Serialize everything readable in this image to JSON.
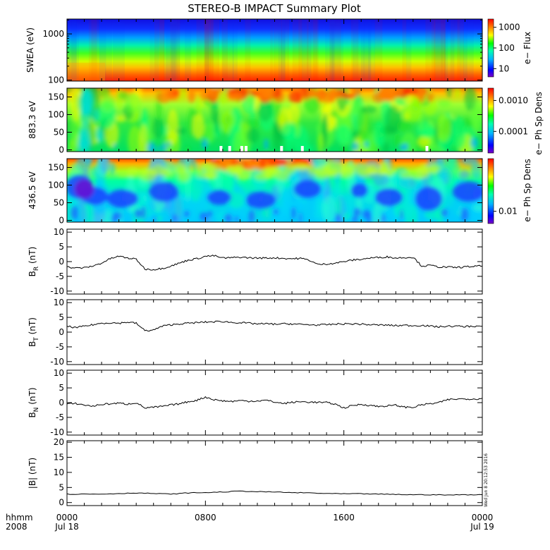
{
  "title": "STEREO-B IMPACT Summary Plot",
  "stamp": "Wed Jun  8 20:12:53 2016",
  "x_axis": {
    "row1": [
      "hhmm",
      "0000",
      "0800",
      "1600",
      "0000"
    ],
    "row2": [
      "2008",
      "Jul 18",
      "Jul 19"
    ]
  },
  "colors": {
    "line": "#000000",
    "background": "#ffffff"
  },
  "chart_data": [
    {
      "type": "heatmap",
      "name": "swea",
      "ylabel": "SWEA (eV)",
      "yscale": "log",
      "ylim": [
        95,
        2100
      ],
      "yticks": [
        "100",
        "1000"
      ],
      "colorbar": {
        "label": "e− Flux",
        "scale": "log",
        "range": [
          4,
          2500
        ],
        "ticks": [
          "10",
          "100",
          "1000"
        ]
      },
      "description_rows_low_to_high": "flux decreases with energy: red near 100 eV, green near 400 eV, blue above 1000 eV"
    },
    {
      "type": "heatmap",
      "name": "pad_883",
      "ylabel": "883.3 eV",
      "ylim": [
        -5,
        175
      ],
      "yticks": [
        "0",
        "50",
        "100",
        "150"
      ],
      "colorbar": {
        "label": "e− Ph Sp Dens",
        "scale": "log",
        "range": [
          2e-05,
          0.0025
        ],
        "ticks": [
          "0.0001",
          "0.0010"
        ]
      },
      "gaps_hours": [
        8.9,
        9.4,
        10.1,
        10.35,
        12.4,
        13.6,
        20.8
      ]
    },
    {
      "type": "heatmap",
      "name": "pad_436",
      "ylabel": "436.5 eV",
      "ylim": [
        -5,
        175
      ],
      "yticks": [
        "0",
        "50",
        "100",
        "150"
      ],
      "colorbar": {
        "label": "e− Ph Sp Dens",
        "scale": "log",
        "range": [
          0.006,
          0.09
        ],
        "ticks": [
          "0.01"
        ]
      }
    },
    {
      "type": "line",
      "name": "br",
      "ylabel": "B_R (nT)",
      "ylabel_main": "B",
      "ylabel_sub": "R",
      "ylabel_unit": "(nT)",
      "ylim": [
        -11,
        11
      ],
      "yticks": [
        "-10",
        "-5",
        "0",
        "5",
        "10"
      ],
      "x": [
        0,
        0.5,
        1,
        1.5,
        2,
        2.5,
        3,
        3.5,
        4,
        4.5,
        5,
        5.5,
        6,
        6.5,
        7,
        7.5,
        8,
        8.5,
        9,
        9.5,
        10,
        10.5,
        11,
        11.5,
        12,
        12.5,
        13,
        13.5,
        14,
        14.5,
        15,
        15.5,
        16,
        16.5,
        17,
        17.5,
        18,
        18.5,
        19,
        19.5,
        20,
        20.5,
        21,
        21.5,
        22,
        22.5,
        23,
        23.5,
        24
      ],
      "y": [
        -1.8,
        -2.2,
        -2.1,
        -1.5,
        -0.5,
        1.0,
        1.8,
        1.2,
        0.8,
        -2.5,
        -2.7,
        -2.3,
        -1.5,
        -0.5,
        0.5,
        1.0,
        1.8,
        2.0,
        1.2,
        1.3,
        1.5,
        1.3,
        1.2,
        1.2,
        1.3,
        1.1,
        1.0,
        1.1,
        0.5,
        -1.0,
        -0.8,
        -0.5,
        0.0,
        0.5,
        0.8,
        1.2,
        1.4,
        1.6,
        1.2,
        1.4,
        1.5,
        -1.5,
        -1.3,
        -1.8,
        -1.9,
        -2.0,
        -1.8,
        -1.6,
        -1.5
      ]
    },
    {
      "type": "line",
      "name": "bt",
      "ylabel": "B_T (nT)",
      "ylabel_main": "B",
      "ylabel_sub": "T",
      "ylabel_unit": "(nT)",
      "ylim": [
        -11,
        11
      ],
      "yticks": [
        "-10",
        "-5",
        "0",
        "5",
        "10"
      ],
      "x": [
        0,
        0.5,
        1,
        1.5,
        2,
        2.5,
        3,
        3.5,
        4,
        4.5,
        5,
        5.5,
        6,
        6.5,
        7,
        7.5,
        8,
        8.5,
        9,
        9.5,
        10,
        10.5,
        11,
        11.5,
        12,
        12.5,
        13,
        13.5,
        14,
        14.5,
        15,
        15.5,
        16,
        16.5,
        17,
        17.5,
        18,
        18.5,
        19,
        19.5,
        20,
        20.5,
        21,
        21.5,
        22,
        22.5,
        23,
        23.5,
        24
      ],
      "y": [
        2.0,
        1.5,
        2.0,
        2.5,
        3.0,
        3.2,
        3.0,
        3.4,
        3.0,
        0.5,
        0.7,
        2.0,
        2.5,
        2.8,
        3.0,
        3.2,
        3.4,
        3.5,
        3.6,
        3.3,
        3.2,
        3.0,
        2.8,
        2.8,
        2.7,
        2.8,
        2.8,
        2.6,
        2.5,
        2.4,
        2.5,
        2.7,
        2.8,
        2.8,
        2.7,
        2.5,
        2.4,
        2.4,
        2.2,
        2.3,
        2.2,
        2.3,
        2.0,
        1.8,
        2.0,
        2.0,
        1.9,
        2.0,
        2.0
      ]
    },
    {
      "type": "line",
      "name": "bn",
      "ylabel": "B_N (nT)",
      "ylabel_main": "B",
      "ylabel_sub": "N",
      "ylabel_unit": "(nT)",
      "ylim": [
        -11,
        11
      ],
      "yticks": [
        "-10",
        "-5",
        "0",
        "5",
        "10"
      ],
      "x": [
        0,
        0.5,
        1,
        1.5,
        2,
        2.5,
        3,
        3.5,
        4,
        4.5,
        5,
        5.5,
        6,
        6.5,
        7,
        7.5,
        8,
        8.5,
        9,
        9.5,
        10,
        10.5,
        11,
        11.5,
        12,
        12.5,
        13,
        13.5,
        14,
        14.5,
        15,
        15.5,
        16,
        16.5,
        17,
        17.5,
        18,
        18.5,
        19,
        19.5,
        20,
        20.5,
        21,
        21.5,
        22,
        22.5,
        23,
        23.5,
        24
      ],
      "y": [
        -0.5,
        -0.3,
        -0.8,
        -1.2,
        -0.6,
        -0.4,
        -0.2,
        -0.5,
        0.0,
        -1.8,
        -1.6,
        -1.3,
        -0.8,
        -0.4,
        0.3,
        0.8,
        1.9,
        1.0,
        0.6,
        0.4,
        0.7,
        0.5,
        0.6,
        0.8,
        0.2,
        -0.3,
        0.1,
        0.3,
        0.2,
        0.1,
        0.0,
        -0.5,
        -1.8,
        -1.0,
        -0.6,
        -0.9,
        -1.3,
        -1.1,
        -0.9,
        -1.5,
        -1.6,
        -0.7,
        -0.4,
        0.0,
        1.0,
        1.2,
        1.3,
        1.2,
        1.5
      ]
    },
    {
      "type": "line",
      "name": "bmag",
      "ylabel": "|B| (nT)",
      "ylim": [
        -1,
        20.5
      ],
      "yticks": [
        "0",
        "5",
        "10",
        "15",
        "20"
      ],
      "x": [
        0,
        1,
        2,
        3,
        4,
        5,
        6,
        7,
        8,
        9,
        10,
        11,
        12,
        13,
        14,
        15,
        16,
        17,
        18,
        19,
        20,
        21,
        22,
        23,
        24
      ],
      "y": [
        2.8,
        2.8,
        2.8,
        3.0,
        3.2,
        3.0,
        2.8,
        3.2,
        3.3,
        3.5,
        3.8,
        3.6,
        3.5,
        3.3,
        3.2,
        3.0,
        2.9,
        2.9,
        2.8,
        2.7,
        2.6,
        2.6,
        2.5,
        2.6,
        2.6
      ]
    }
  ]
}
